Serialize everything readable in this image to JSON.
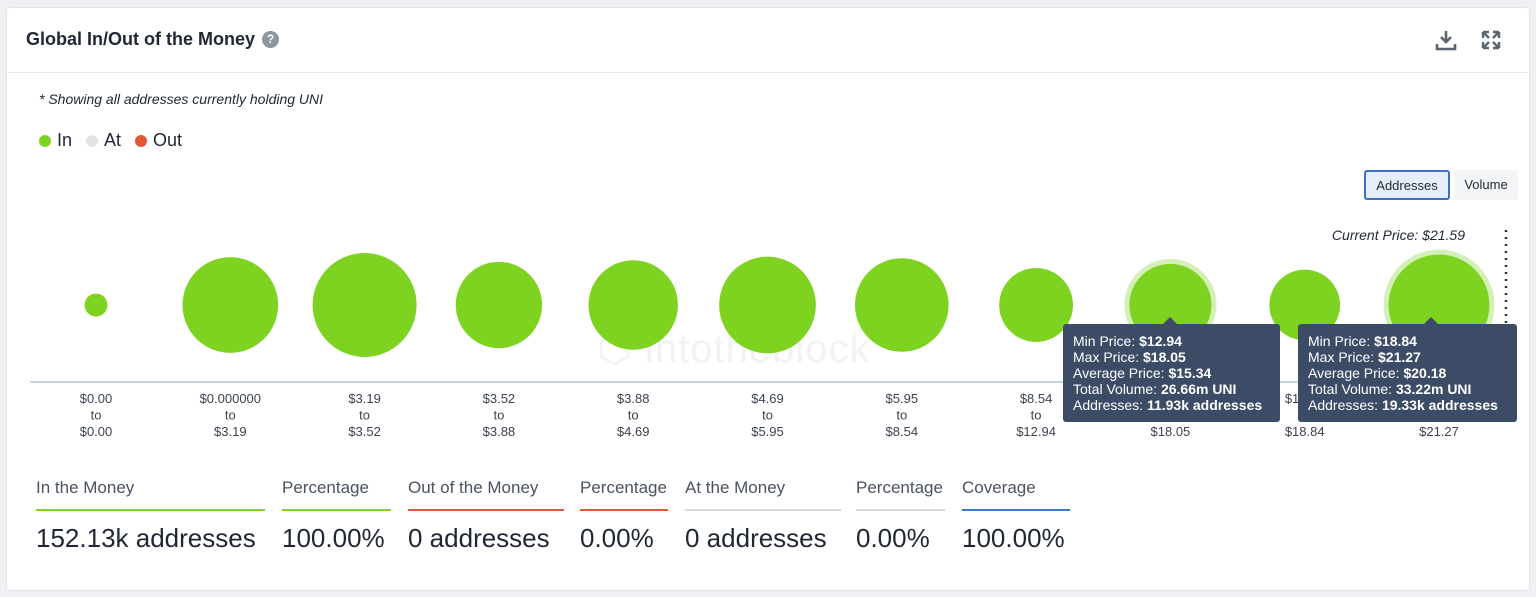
{
  "header": {
    "title": "Global In/Out of the Money",
    "help_icon": "question-circle-icon"
  },
  "note": "* Showing all addresses currently holding UNI",
  "legend": [
    {
      "label": "In",
      "color": "#7ed321"
    },
    {
      "label": "At",
      "color": "#e3e3e3"
    },
    {
      "label": "Out",
      "color": "#e05a3a"
    }
  ],
  "toggles": {
    "addresses": "Addresses",
    "volume": "Volume",
    "selected": "Addresses"
  },
  "current_price_label": "Current Price: $21.59",
  "watermark": "intotheblock",
  "chart_data": {
    "type": "scatter",
    "categories": [
      [
        "$0.00",
        "to",
        "$0.00"
      ],
      [
        "$0.000000",
        "to",
        "$3.19"
      ],
      [
        "$3.19",
        "to",
        "$3.52"
      ],
      [
        "$3.52",
        "to",
        "$3.88"
      ],
      [
        "$3.88",
        "to",
        "$4.69"
      ],
      [
        "$4.69",
        "to",
        "$5.95"
      ],
      [
        "$5.95",
        "to",
        "$8.54"
      ],
      [
        "$8.54",
        "to",
        "$12.94"
      ],
      [
        "$12.94",
        "to",
        "$18.05"
      ],
      [
        "$18.05",
        "to",
        "$18.84"
      ],
      [
        "$18.84",
        "to",
        "$21.27"
      ]
    ],
    "series": [
      {
        "name": "In",
        "color": "#7ed321",
        "relative_size": [
          0.22,
          0.92,
          1.0,
          0.83,
          0.86,
          0.93,
          0.9,
          0.71,
          0.79,
          0.68,
          0.97
        ]
      }
    ],
    "highlighted": [
      8,
      10
    ],
    "current_price": 21.59
  },
  "tooltips": [
    {
      "rows": [
        {
          "label": "Min Price:",
          "value": "$12.94"
        },
        {
          "label": "Max Price:",
          "value": "$18.05"
        },
        {
          "label": "Average Price:",
          "value": "$15.34"
        },
        {
          "label": "Total Volume:",
          "value": "26.66m UNI"
        },
        {
          "label": "Addresses:",
          "value": "11.93k addresses"
        }
      ]
    },
    {
      "rows": [
        {
          "label": "Min Price:",
          "value": "$18.84"
        },
        {
          "label": "Max Price:",
          "value": "$21.27"
        },
        {
          "label": "Average Price:",
          "value": "$20.18"
        },
        {
          "label": "Total Volume:",
          "value": "33.22m UNI"
        },
        {
          "label": "Addresses:",
          "value": "19.33k addresses"
        }
      ]
    }
  ],
  "stats": [
    {
      "label": "In the Money",
      "value": "152.13k addresses",
      "color": "#7ed321"
    },
    {
      "label": "Percentage",
      "value": "100.00%",
      "color": "#7ed321"
    },
    {
      "label": "Out of the Money",
      "value": "0 addresses",
      "color": "#e05a3a"
    },
    {
      "label": "Percentage",
      "value": "0.00%",
      "color": "#e05a3a"
    },
    {
      "label": "At the Money",
      "value": "0 addresses",
      "color": "#d8d8d8"
    },
    {
      "label": "Percentage",
      "value": "0.00%",
      "color": "#d8d8d8"
    },
    {
      "label": "Coverage",
      "value": "100.00%",
      "color": "#3d7bd6"
    }
  ]
}
